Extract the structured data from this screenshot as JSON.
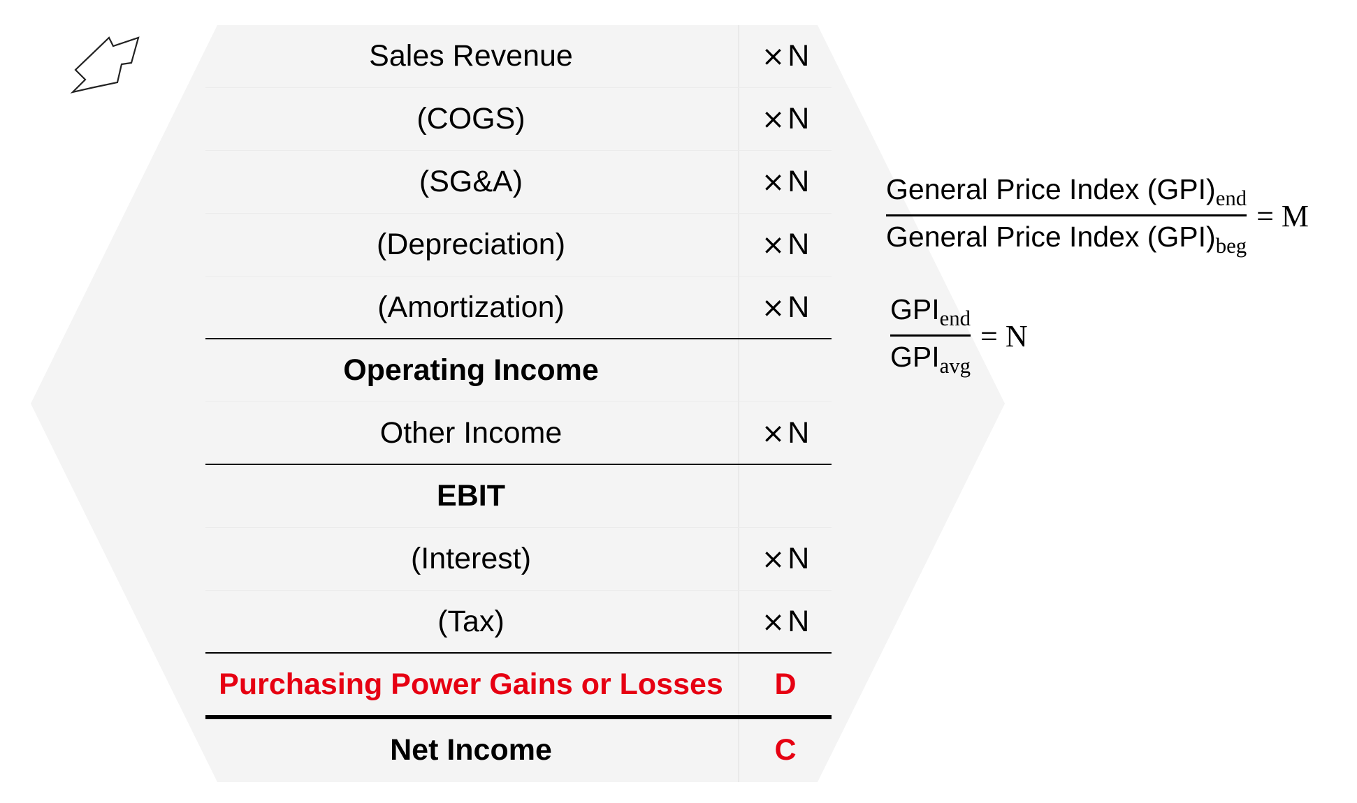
{
  "statement": {
    "rows": [
      {
        "label": "Sales Revenue",
        "value_symbol": "×",
        "value": "N"
      },
      {
        "label": "(COGS)",
        "value_symbol": "×",
        "value": "N"
      },
      {
        "label": "(SG&A)",
        "value_symbol": "×",
        "value": "N"
      },
      {
        "label": "(Depreciation)",
        "value_symbol": "×",
        "value": "N"
      },
      {
        "label": "(Amortization)",
        "value_symbol": "×",
        "value": "N"
      },
      {
        "label": "Operating Income"
      },
      {
        "label": "Other Income",
        "value_symbol": "×",
        "value": "N"
      },
      {
        "label": "EBIT"
      },
      {
        "label": "(Interest)",
        "value_symbol": "×",
        "value": "N"
      },
      {
        "label": "(Tax)",
        "value_symbol": "×",
        "value": "N"
      },
      {
        "label": "Purchasing Power Gains or Losses",
        "value": "D"
      },
      {
        "label": "Net Income",
        "value": "C"
      }
    ]
  },
  "formulas": {
    "gpi_ratio": {
      "numerator": "General Price Index (GPI)",
      "numerator_sub": "end",
      "denominator": "General Price Index (GPI)",
      "denominator_sub": "beg",
      "equals": "=",
      "result": "M"
    },
    "gpi_avg_ratio": {
      "numerator": "GPI",
      "numerator_sub": "end",
      "denominator": "GPI",
      "denominator_sub": "avg",
      "equals": "=",
      "result": "N"
    }
  },
  "colors": {
    "accent_red": "#e60012",
    "panel_gray": "#f4f4f4",
    "text": "#000000"
  },
  "icons": {
    "pointer": "arrow-outline-icon"
  }
}
